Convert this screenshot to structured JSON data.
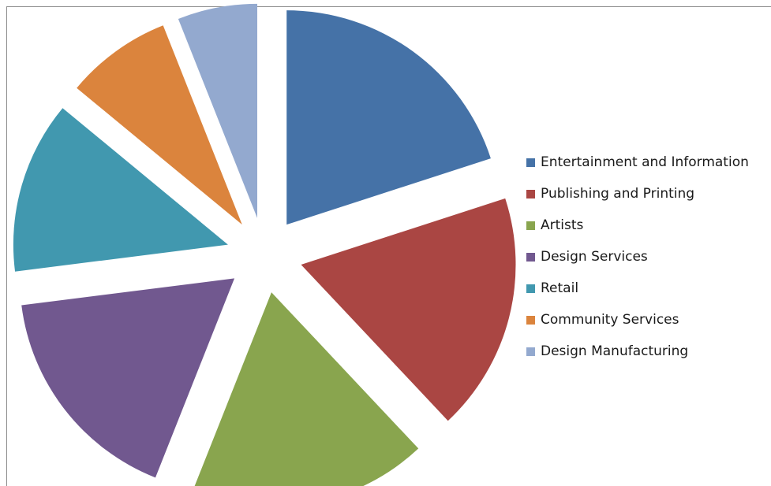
{
  "chart_data": {
    "type": "pie",
    "exploded": true,
    "legend_position": "right",
    "series": [
      {
        "name": "Entertainment and Information",
        "value": 20,
        "color": "#4572A7"
      },
      {
        "name": "Publishing and Printing",
        "value": 18,
        "color": "#AA4643"
      },
      {
        "name": "Artists",
        "value": 18,
        "color": "#89A54E"
      },
      {
        "name": "Design Services",
        "value": 17,
        "color": "#71588F"
      },
      {
        "name": "Retail",
        "value": 13,
        "color": "#4198AF"
      },
      {
        "name": "Community Services",
        "value": 8,
        "color": "#DB843D"
      },
      {
        "name": "Design Manufacturing",
        "value": 6,
        "color": "#93A9CF"
      }
    ]
  }
}
